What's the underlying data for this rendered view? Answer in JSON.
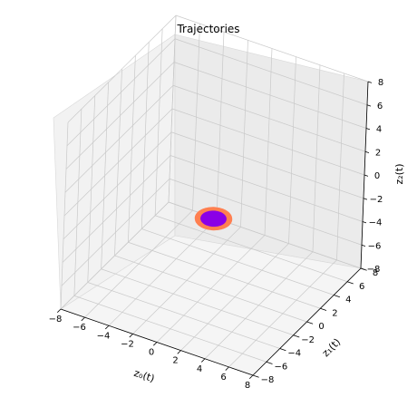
{
  "chart_data": {
    "type": "line",
    "projection": "3d",
    "title": "Trajectories",
    "xlabel": "z₀(t)",
    "ylabel": "z₁(t)",
    "zlabel": "z₂(t)",
    "xlim": [
      -8,
      8
    ],
    "ylim": [
      -8,
      8
    ],
    "zlim": [
      -8,
      8
    ],
    "x_ticks": [
      "−8",
      "−6",
      "−4",
      "−2",
      "0",
      "2",
      "4",
      "6",
      "8"
    ],
    "y_ticks": [
      "−8",
      "−6",
      "−4",
      "−2",
      "0",
      "2",
      "4",
      "6",
      "8"
    ],
    "z_ticks": [
      "−8",
      "−6",
      "−4",
      "−2",
      "0",
      "2",
      "4",
      "6",
      "8"
    ],
    "grid": true,
    "series": [
      {
        "type": "closed-orbit",
        "color": "#ff7f50",
        "center": [
          0,
          0,
          -2
        ],
        "radius": 1.2,
        "line": "thick"
      },
      {
        "type": "closed-orbit",
        "color": "#8a00e6",
        "center": [
          0,
          0,
          -2
        ],
        "radius": 0.85,
        "line": "thick"
      }
    ]
  }
}
